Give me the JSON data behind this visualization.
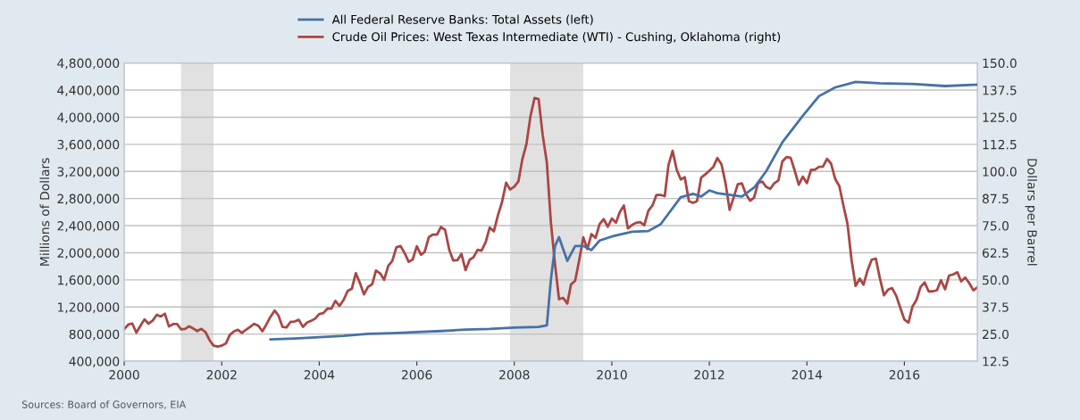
{
  "chart_data": {
    "type": "line",
    "ylabel": "Millions of Dollars",
    "y2label": "Dollars per Barrel",
    "annotations": [
      "Sources: Board of Governors, EIA"
    ],
    "legend": "top",
    "grid": "y",
    "marker": "none",
    "line_style": "solid",
    "xlim": [
      "2000-01",
      "2017-07"
    ],
    "xticks": [
      "2000",
      "2002",
      "2004",
      "2006",
      "2008",
      "2010",
      "2012",
      "2014",
      "2016"
    ],
    "ylim": [
      400000,
      4800000
    ],
    "yticks": [
      {
        "value": 400000,
        "label": "400,000"
      },
      {
        "value": 800000,
        "label": "800,000"
      },
      {
        "value": 1200000,
        "label": "1,200,000"
      },
      {
        "value": 1600000,
        "label": "1,600,000"
      },
      {
        "value": 2000000,
        "label": "2,000,000"
      },
      {
        "value": 2400000,
        "label": "2,400,000"
      },
      {
        "value": 2800000,
        "label": "2,800,000"
      },
      {
        "value": 3200000,
        "label": "3,200,000"
      },
      {
        "value": 3600000,
        "label": "3,600,000"
      },
      {
        "value": 4000000,
        "label": "4,000,000"
      },
      {
        "value": 4400000,
        "label": "4,400,000"
      },
      {
        "value": 4800000,
        "label": "4,800,000"
      }
    ],
    "y2lim": [
      12.5,
      150
    ],
    "y2ticks": [
      {
        "value": 12.5,
        "label": "12.5"
      },
      {
        "value": 25,
        "label": "25.0"
      },
      {
        "value": 37.5,
        "label": "37.5"
      },
      {
        "value": 50,
        "label": "50.0"
      },
      {
        "value": 62.5,
        "label": "62.5"
      },
      {
        "value": 75,
        "label": "75.0"
      },
      {
        "value": 87.5,
        "label": "87.5"
      },
      {
        "value": 100,
        "label": "100.0"
      },
      {
        "value": 112.5,
        "label": "112.5"
      },
      {
        "value": 125,
        "label": "125.0"
      },
      {
        "value": 137.5,
        "label": "137.5"
      },
      {
        "value": 150,
        "label": "150.0"
      }
    ],
    "bands": [
      {
        "axis": "x",
        "from": "2001-03",
        "to": "2001-11",
        "color": "#e1e1e1"
      },
      {
        "axis": "x",
        "from": "2007-12",
        "to": "2009-06",
        "color": "#e1e1e1"
      }
    ],
    "series": [
      {
        "name": "All Federal Reserve Banks: Total Assets (left)",
        "color": "#4572a7",
        "axis": "y",
        "x": [
          "2003-01",
          "2003-07",
          "2004-01",
          "2004-07",
          "2005-01",
          "2005-07",
          "2006-01",
          "2006-07",
          "2007-01",
          "2007-07",
          "2008-01",
          "2008-07",
          "2008-09",
          "2008-10",
          "2008-11",
          "2008-12",
          "2009-02",
          "2009-04",
          "2009-06",
          "2009-08",
          "2009-10",
          "2010-01",
          "2010-06",
          "2010-10",
          "2011-01",
          "2011-06",
          "2011-09",
          "2011-11",
          "2012-01",
          "2012-03",
          "2012-09",
          "2012-12",
          "2013-03",
          "2013-07",
          "2013-12",
          "2014-04",
          "2014-08",
          "2015-01",
          "2015-07",
          "2016-03",
          "2016-11",
          "2017-07"
        ],
        "values": [
          722000,
          735000,
          755000,
          775000,
          805000,
          815000,
          830000,
          845000,
          865000,
          875000,
          895000,
          905000,
          930000,
          1600000,
          2100000,
          2230000,
          1880000,
          2100000,
          2100000,
          2040000,
          2180000,
          2240000,
          2310000,
          2320000,
          2420000,
          2820000,
          2870000,
          2830000,
          2920000,
          2880000,
          2830000,
          2960000,
          3200000,
          3630000,
          4020000,
          4310000,
          4440000,
          4520000,
          4500000,
          4490000,
          4460000,
          4480000
        ]
      },
      {
        "name": "Crude Oil Prices: West Texas Intermediate (WTI) - Cushing, Oklahoma (right)",
        "color": "#aa4643",
        "axis": "y2",
        "x": [
          "2000-01",
          "2000-02",
          "2000-03",
          "2000-04",
          "2000-05",
          "2000-06",
          "2000-07",
          "2000-08",
          "2000-09",
          "2000-10",
          "2000-11",
          "2000-12",
          "2001-01",
          "2001-02",
          "2001-03",
          "2001-04",
          "2001-05",
          "2001-06",
          "2001-07",
          "2001-08",
          "2001-09",
          "2001-10",
          "2001-11",
          "2001-12",
          "2002-01",
          "2002-02",
          "2002-03",
          "2002-04",
          "2002-05",
          "2002-06",
          "2002-07",
          "2002-08",
          "2002-09",
          "2002-10",
          "2002-11",
          "2002-12",
          "2003-01",
          "2003-02",
          "2003-03",
          "2003-04",
          "2003-05",
          "2003-06",
          "2003-07",
          "2003-08",
          "2003-09",
          "2003-10",
          "2003-11",
          "2003-12",
          "2004-01",
          "2004-02",
          "2004-03",
          "2004-04",
          "2004-05",
          "2004-06",
          "2004-07",
          "2004-08",
          "2004-09",
          "2004-10",
          "2004-11",
          "2004-12",
          "2005-01",
          "2005-02",
          "2005-03",
          "2005-04",
          "2005-05",
          "2005-06",
          "2005-07",
          "2005-08",
          "2005-09",
          "2005-10",
          "2005-11",
          "2005-12",
          "2006-01",
          "2006-02",
          "2006-03",
          "2006-04",
          "2006-05",
          "2006-06",
          "2006-07",
          "2006-08",
          "2006-09",
          "2006-10",
          "2006-11",
          "2006-12",
          "2007-01",
          "2007-02",
          "2007-03",
          "2007-04",
          "2007-05",
          "2007-06",
          "2007-07",
          "2007-08",
          "2007-09",
          "2007-10",
          "2007-11",
          "2007-12",
          "2008-01",
          "2008-02",
          "2008-03",
          "2008-04",
          "2008-05",
          "2008-06",
          "2008-07",
          "2008-08",
          "2008-09",
          "2008-10",
          "2008-11",
          "2008-12",
          "2009-01",
          "2009-02",
          "2009-03",
          "2009-04",
          "2009-05",
          "2009-06",
          "2009-07",
          "2009-08",
          "2009-09",
          "2009-10",
          "2009-11",
          "2009-12",
          "2010-01",
          "2010-02",
          "2010-03",
          "2010-04",
          "2010-05",
          "2010-06",
          "2010-07",
          "2010-08",
          "2010-09",
          "2010-10",
          "2010-11",
          "2010-12",
          "2011-01",
          "2011-02",
          "2011-03",
          "2011-04",
          "2011-05",
          "2011-06",
          "2011-07",
          "2011-08",
          "2011-09",
          "2011-10",
          "2011-11",
          "2011-12",
          "2012-01",
          "2012-02",
          "2012-03",
          "2012-04",
          "2012-05",
          "2012-06",
          "2012-07",
          "2012-08",
          "2012-09",
          "2012-10",
          "2012-11",
          "2012-12",
          "2013-01",
          "2013-02",
          "2013-03",
          "2013-04",
          "2013-05",
          "2013-06",
          "2013-07",
          "2013-08",
          "2013-09",
          "2013-10",
          "2013-11",
          "2013-12",
          "2014-01",
          "2014-02",
          "2014-03",
          "2014-04",
          "2014-05",
          "2014-06",
          "2014-07",
          "2014-08",
          "2014-09",
          "2014-10",
          "2014-11",
          "2014-12",
          "2015-01",
          "2015-02",
          "2015-03",
          "2015-04",
          "2015-05",
          "2015-06",
          "2015-07",
          "2015-08",
          "2015-09",
          "2015-10",
          "2015-11",
          "2015-12",
          "2016-01",
          "2016-02",
          "2016-03",
          "2016-04",
          "2016-05",
          "2016-06",
          "2016-07",
          "2016-08",
          "2016-09",
          "2016-10",
          "2016-11",
          "2016-12",
          "2017-01",
          "2017-02",
          "2017-03",
          "2017-04",
          "2017-05",
          "2017-06",
          "2017-07"
        ],
        "values": [
          27.3,
          29.4,
          29.9,
          25.7,
          28.8,
          31.8,
          29.8,
          31.2,
          33.9,
          33.1,
          34.4,
          28.5,
          29.6,
          29.6,
          27.2,
          27.4,
          28.6,
          27.6,
          26.4,
          27.4,
          25.9,
          22.2,
          19.7,
          19.3,
          19.7,
          20.7,
          24.5,
          26.2,
          27.0,
          25.5,
          27.0,
          28.3,
          29.7,
          28.9,
          26.3,
          29.4,
          33.0,
          35.9,
          33.6,
          28.3,
          28.1,
          30.7,
          30.8,
          31.6,
          28.3,
          30.3,
          31.1,
          32.1,
          34.3,
          34.7,
          36.7,
          36.7,
          40.3,
          38.0,
          40.7,
          44.9,
          45.9,
          53.1,
          48.5,
          43.3,
          46.8,
          48.0,
          54.3,
          53.0,
          50.0,
          56.5,
          58.7,
          65.0,
          65.6,
          62.4,
          58.3,
          59.4,
          65.5,
          61.6,
          62.9,
          69.7,
          70.9,
          70.9,
          74.4,
          73.0,
          63.8,
          58.9,
          59.1,
          62.0,
          54.5,
          59.3,
          60.4,
          63.9,
          63.5,
          67.5,
          74.1,
          72.4,
          79.9,
          85.8,
          94.8,
          91.7,
          93.0,
          95.4,
          105.5,
          112.6,
          125.4,
          133.9,
          133.4,
          116.7,
          104.1,
          76.6,
          57.3,
          41.1,
          41.7,
          39.1,
          47.9,
          49.6,
          59.0,
          69.6,
          64.2,
          71.1,
          69.4,
          75.7,
          78.0,
          74.5,
          78.3,
          76.4,
          81.2,
          84.3,
          73.7,
          75.3,
          76.3,
          76.6,
          75.2,
          81.9,
          84.3,
          89.2,
          89.2,
          88.6,
          102.9,
          109.5,
          100.9,
          96.3,
          97.3,
          86.3,
          85.5,
          86.3,
          97.2,
          98.6,
          100.3,
          102.2,
          106.2,
          103.3,
          94.7,
          82.3,
          87.9,
          94.1,
          94.5,
          89.5,
          86.5,
          87.9,
          94.8,
          95.3,
          92.9,
          92.0,
          94.5,
          95.8,
          104.6,
          106.6,
          106.3,
          100.5,
          93.9,
          97.6,
          94.6,
          100.8,
          100.8,
          102.1,
          102.2,
          105.8,
          103.6,
          96.5,
          93.2,
          84.4,
          75.8,
          59.3,
          47.2,
          50.6,
          47.8,
          54.5,
          59.3,
          59.8,
          50.9,
          42.9,
          45.5,
          46.2,
          42.7,
          37.2,
          31.7,
          30.3,
          37.6,
          40.8,
          46.7,
          48.8,
          44.7,
          44.7,
          45.2,
          49.8,
          45.7,
          52.0,
          52.5,
          53.5,
          49.3,
          51.1,
          48.5,
          45.2,
          46.6
        ]
      }
    ]
  }
}
